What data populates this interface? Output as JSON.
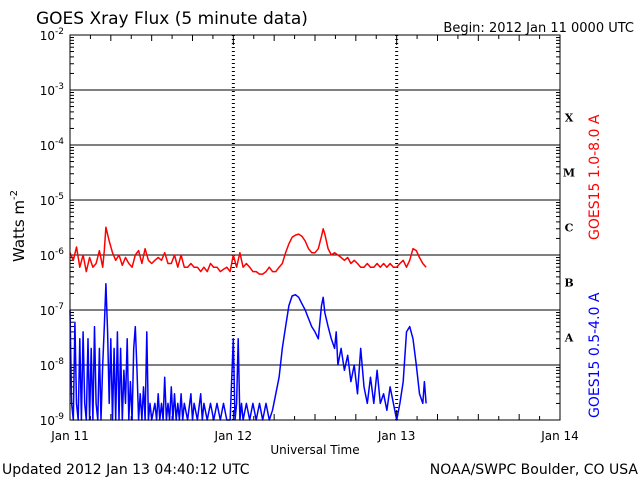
{
  "chart_data": {
    "type": "line",
    "title": "GOES Xray Flux (5 minute data)",
    "begin_text": "Begin:  2012 Jan 11 0000 UTC",
    "xlabel": "Universal Time",
    "ylabel_main": "Watts m",
    "ylabel_exp": "-2",
    "ylim_log10": [
      -9,
      -2
    ],
    "xlim_days": [
      0,
      3
    ],
    "x_ticks": [
      {
        "day": 0,
        "label": "Jan 11"
      },
      {
        "day": 1,
        "label": "Jan 12"
      },
      {
        "day": 2,
        "label": "Jan 13"
      },
      {
        "day": 3,
        "label": "Jan 14"
      }
    ],
    "y_ticks": [
      {
        "exp": -9,
        "base": "10",
        "sup": "-9"
      },
      {
        "exp": -8,
        "base": "10",
        "sup": "-8"
      },
      {
        "exp": -7,
        "base": "10",
        "sup": "-7"
      },
      {
        "exp": -6,
        "base": "10",
        "sup": "-6"
      },
      {
        "exp": -5,
        "base": "10",
        "sup": "-5"
      },
      {
        "exp": -4,
        "base": "10",
        "sup": "-4"
      },
      {
        "exp": -3,
        "base": "10",
        "sup": "-3"
      },
      {
        "exp": -2,
        "base": "10",
        "sup": "-2"
      }
    ],
    "flare_classes": [
      {
        "label": "X",
        "exp": -3.5
      },
      {
        "label": "M",
        "exp": -4.5
      },
      {
        "label": "C",
        "exp": -5.5
      },
      {
        "label": "B",
        "exp": -6.5
      },
      {
        "label": "A",
        "exp": -7.5
      }
    ],
    "grid": "horizontal solid lines at each decade; dashed vertical lines at each day",
    "legend_placement": "right, rotated",
    "series": [
      {
        "name": "GOES15 1.0-8.0 A",
        "color": "#ff0000",
        "points": [
          [
            0.0,
            1.1e-06
          ],
          [
            0.02,
            8e-07
          ],
          [
            0.04,
            1.4e-06
          ],
          [
            0.06,
            6e-07
          ],
          [
            0.08,
            1e-06
          ],
          [
            0.1,
            5e-07
          ],
          [
            0.12,
            9e-07
          ],
          [
            0.14,
            6e-07
          ],
          [
            0.16,
            7e-07
          ],
          [
            0.18,
            1.2e-06
          ],
          [
            0.2,
            6e-07
          ],
          [
            0.21,
            1.2e-06
          ],
          [
            0.22,
            3.2e-06
          ],
          [
            0.24,
            1.8e-06
          ],
          [
            0.26,
            1.1e-06
          ],
          [
            0.28,
            8e-07
          ],
          [
            0.3,
            1e-06
          ],
          [
            0.32,
            6.5e-07
          ],
          [
            0.34,
            9e-07
          ],
          [
            0.36,
            7e-07
          ],
          [
            0.38,
            6e-07
          ],
          [
            0.4,
            1e-06
          ],
          [
            0.42,
            1.2e-06
          ],
          [
            0.44,
            7e-07
          ],
          [
            0.46,
            1.3e-06
          ],
          [
            0.48,
            8e-07
          ],
          [
            0.5,
            7e-07
          ],
          [
            0.52,
            8e-07
          ],
          [
            0.54,
            9e-07
          ],
          [
            0.56,
            8e-07
          ],
          [
            0.58,
            1.1e-06
          ],
          [
            0.6,
            7e-07
          ],
          [
            0.62,
            7e-07
          ],
          [
            0.64,
            1e-06
          ],
          [
            0.66,
            6e-07
          ],
          [
            0.68,
            1e-06
          ],
          [
            0.7,
            6e-07
          ],
          [
            0.72,
            6e-07
          ],
          [
            0.74,
            7e-07
          ],
          [
            0.76,
            6e-07
          ],
          [
            0.78,
            6e-07
          ],
          [
            0.8,
            5e-07
          ],
          [
            0.82,
            6e-07
          ],
          [
            0.84,
            5e-07
          ],
          [
            0.86,
            7e-07
          ],
          [
            0.88,
            6e-07
          ],
          [
            0.9,
            6e-07
          ],
          [
            0.92,
            5e-07
          ],
          [
            0.94,
            5.5e-07
          ],
          [
            0.96,
            6e-07
          ],
          [
            0.98,
            5e-07
          ],
          [
            1.0,
            1e-06
          ],
          [
            1.02,
            6e-07
          ],
          [
            1.04,
            1.1e-06
          ],
          [
            1.06,
            6e-07
          ],
          [
            1.08,
            7e-07
          ],
          [
            1.1,
            6e-07
          ],
          [
            1.12,
            5e-07
          ],
          [
            1.14,
            5e-07
          ],
          [
            1.16,
            4.5e-07
          ],
          [
            1.18,
            4.5e-07
          ],
          [
            1.2,
            5e-07
          ],
          [
            1.22,
            6e-07
          ],
          [
            1.24,
            5e-07
          ],
          [
            1.26,
            5e-07
          ],
          [
            1.28,
            6e-07
          ],
          [
            1.3,
            7e-07
          ],
          [
            1.32,
            1.1e-06
          ],
          [
            1.34,
            1.6e-06
          ],
          [
            1.36,
            2.1e-06
          ],
          [
            1.38,
            2.3e-06
          ],
          [
            1.4,
            2.4e-06
          ],
          [
            1.42,
            2.2e-06
          ],
          [
            1.44,
            1.8e-06
          ],
          [
            1.46,
            1.3e-06
          ],
          [
            1.48,
            1.1e-06
          ],
          [
            1.5,
            1.1e-06
          ],
          [
            1.52,
            1.3e-06
          ],
          [
            1.54,
            2.2e-06
          ],
          [
            1.55,
            3e-06
          ],
          [
            1.56,
            2.4e-06
          ],
          [
            1.58,
            1.3e-06
          ],
          [
            1.6,
            1e-06
          ],
          [
            1.62,
            1.1e-06
          ],
          [
            1.64,
            1e-06
          ],
          [
            1.66,
            9e-07
          ],
          [
            1.68,
            8e-07
          ],
          [
            1.7,
            9e-07
          ],
          [
            1.72,
            7e-07
          ],
          [
            1.74,
            8e-07
          ],
          [
            1.76,
            7e-07
          ],
          [
            1.78,
            6e-07
          ],
          [
            1.8,
            6e-07
          ],
          [
            1.82,
            7e-07
          ],
          [
            1.84,
            6e-07
          ],
          [
            1.86,
            6e-07
          ],
          [
            1.88,
            7e-07
          ],
          [
            1.9,
            6e-07
          ],
          [
            1.92,
            7e-07
          ],
          [
            1.94,
            6e-07
          ],
          [
            1.96,
            7e-07
          ],
          [
            1.98,
            6e-07
          ],
          [
            2.0,
            6e-07
          ],
          [
            2.02,
            7e-07
          ],
          [
            2.04,
            8e-07
          ],
          [
            2.06,
            6e-07
          ],
          [
            2.08,
            8e-07
          ],
          [
            2.1,
            1.3e-06
          ],
          [
            2.12,
            1.2e-06
          ],
          [
            2.14,
            9e-07
          ],
          [
            2.16,
            7e-07
          ],
          [
            2.18,
            6e-07
          ]
        ]
      },
      {
        "name": "GOES15 0.5-4.0 A",
        "color": "#0000ff",
        "points": [
          [
            0.0,
            1e-07
          ],
          [
            0.01,
            2e-09
          ],
          [
            0.02,
            1e-09
          ],
          [
            0.03,
            6e-08
          ],
          [
            0.04,
            2e-09
          ],
          [
            0.05,
            1e-09
          ],
          [
            0.06,
            3e-08
          ],
          [
            0.07,
            1e-09
          ],
          [
            0.08,
            4e-08
          ],
          [
            0.09,
            2e-09
          ],
          [
            0.1,
            1e-09
          ],
          [
            0.11,
            3e-08
          ],
          [
            0.12,
            1e-09
          ],
          [
            0.13,
            2e-08
          ],
          [
            0.14,
            1e-09
          ],
          [
            0.15,
            5e-08
          ],
          [
            0.16,
            2e-09
          ],
          [
            0.17,
            1e-09
          ],
          [
            0.18,
            2e-08
          ],
          [
            0.19,
            1e-09
          ],
          [
            0.2,
            1e-08
          ],
          [
            0.21,
            5e-08
          ],
          [
            0.22,
            3e-07
          ],
          [
            0.23,
            4e-08
          ],
          [
            0.24,
            2e-09
          ],
          [
            0.25,
            3e-08
          ],
          [
            0.26,
            1e-09
          ],
          [
            0.27,
            2e-08
          ],
          [
            0.28,
            1e-09
          ],
          [
            0.29,
            4e-08
          ],
          [
            0.3,
            1e-09
          ],
          [
            0.31,
            2e-08
          ],
          [
            0.32,
            1e-09
          ],
          [
            0.33,
            8e-09
          ],
          [
            0.34,
            2e-09
          ],
          [
            0.35,
            3e-08
          ],
          [
            0.36,
            1e-09
          ],
          [
            0.37,
            5e-09
          ],
          [
            0.38,
            1e-09
          ],
          [
            0.39,
            2e-08
          ],
          [
            0.4,
            5e-08
          ],
          [
            0.41,
            8e-09
          ],
          [
            0.42,
            1e-09
          ],
          [
            0.43,
            3e-09
          ],
          [
            0.44,
            1e-09
          ],
          [
            0.45,
            4e-09
          ],
          [
            0.46,
            1e-09
          ],
          [
            0.47,
            4e-08
          ],
          [
            0.48,
            1e-09
          ],
          [
            0.49,
            2e-09
          ],
          [
            0.5,
            1e-09
          ],
          [
            0.52,
            2e-09
          ],
          [
            0.53,
            1e-09
          ],
          [
            0.54,
            3e-09
          ],
          [
            0.55,
            1e-09
          ],
          [
            0.56,
            2e-09
          ],
          [
            0.57,
            1e-09
          ],
          [
            0.58,
            6e-09
          ],
          [
            0.59,
            1e-09
          ],
          [
            0.6,
            2e-09
          ],
          [
            0.61,
            1e-09
          ],
          [
            0.62,
            4e-09
          ],
          [
            0.63,
            1e-09
          ],
          [
            0.64,
            3e-09
          ],
          [
            0.65,
            1e-09
          ],
          [
            0.66,
            2e-09
          ],
          [
            0.67,
            1e-09
          ],
          [
            0.68,
            3e-09
          ],
          [
            0.69,
            1e-09
          ],
          [
            0.7,
            2e-09
          ],
          [
            0.72,
            1e-09
          ],
          [
            0.74,
            3e-09
          ],
          [
            0.75,
            1e-09
          ],
          [
            0.76,
            2e-09
          ],
          [
            0.78,
            1e-09
          ],
          [
            0.8,
            3e-09
          ],
          [
            0.81,
            1e-09
          ],
          [
            0.82,
            2e-09
          ],
          [
            0.84,
            1e-09
          ],
          [
            0.86,
            2e-09
          ],
          [
            0.88,
            1e-09
          ],
          [
            0.9,
            2e-09
          ],
          [
            0.92,
            1e-09
          ],
          [
            0.94,
            2e-09
          ],
          [
            0.96,
            1e-09
          ],
          [
            0.98,
            1e-09
          ],
          [
            1.0,
            3e-08
          ],
          [
            1.01,
            1e-09
          ],
          [
            1.02,
            2e-09
          ],
          [
            1.03,
            3e-08
          ],
          [
            1.04,
            1e-09
          ],
          [
            1.05,
            2e-09
          ],
          [
            1.06,
            1e-09
          ],
          [
            1.08,
            2e-09
          ],
          [
            1.1,
            1e-09
          ],
          [
            1.12,
            2e-09
          ],
          [
            1.14,
            1e-09
          ],
          [
            1.16,
            2e-09
          ],
          [
            1.18,
            1e-09
          ],
          [
            1.2,
            2e-09
          ],
          [
            1.22,
            1e-09
          ],
          [
            1.24,
            1.5e-09
          ],
          [
            1.26,
            3e-09
          ],
          [
            1.28,
            6e-09
          ],
          [
            1.3,
            2e-08
          ],
          [
            1.32,
            5e-08
          ],
          [
            1.34,
            1.2e-07
          ],
          [
            1.36,
            1.8e-07
          ],
          [
            1.38,
            1.9e-07
          ],
          [
            1.4,
            1.7e-07
          ],
          [
            1.42,
            1.3e-07
          ],
          [
            1.44,
            1e-07
          ],
          [
            1.46,
            7e-08
          ],
          [
            1.48,
            5e-08
          ],
          [
            1.5,
            4e-08
          ],
          [
            1.52,
            3e-08
          ],
          [
            1.53,
            6e-08
          ],
          [
            1.54,
            1.2e-07
          ],
          [
            1.55,
            1.7e-07
          ],
          [
            1.56,
            9e-08
          ],
          [
            1.58,
            5e-08
          ],
          [
            1.6,
            3e-08
          ],
          [
            1.62,
            2e-08
          ],
          [
            1.63,
            4e-08
          ],
          [
            1.64,
            1e-08
          ],
          [
            1.66,
            2e-08
          ],
          [
            1.68,
            8e-09
          ],
          [
            1.7,
            1.5e-08
          ],
          [
            1.72,
            5e-09
          ],
          [
            1.74,
            1e-08
          ],
          [
            1.76,
            3e-09
          ],
          [
            1.78,
            2e-08
          ],
          [
            1.8,
            4e-09
          ],
          [
            1.82,
            2e-09
          ],
          [
            1.84,
            6e-09
          ],
          [
            1.86,
            2e-09
          ],
          [
            1.88,
            8e-09
          ],
          [
            1.9,
            2e-09
          ],
          [
            1.92,
            3e-09
          ],
          [
            1.94,
            1.5e-09
          ],
          [
            1.96,
            4e-09
          ],
          [
            1.98,
            2e-09
          ],
          [
            2.0,
            1e-09
          ],
          [
            2.02,
            2e-09
          ],
          [
            2.04,
            5e-09
          ],
          [
            2.06,
            4e-08
          ],
          [
            2.08,
            5e-08
          ],
          [
            2.1,
            3e-08
          ],
          [
            2.12,
            1e-08
          ],
          [
            2.14,
            3e-09
          ],
          [
            2.16,
            2e-09
          ],
          [
            2.17,
            5e-09
          ],
          [
            2.18,
            2e-09
          ]
        ]
      }
    ]
  },
  "footer": {
    "updated": "Updated 2012 Jan 13 04:40:12 UTC",
    "credit": "NOAA/SWPC Boulder, CO USA"
  }
}
